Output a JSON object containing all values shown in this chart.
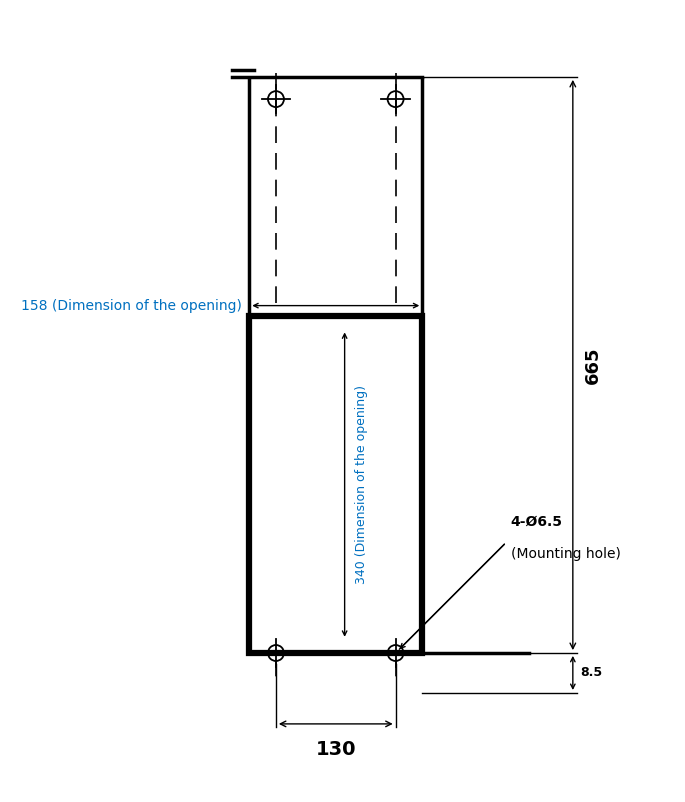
{
  "bg_color": "#ffffff",
  "line_color": "#000000",
  "text_color_blue": "#0070c0",
  "text_color_black": "#000000",
  "dim_158": "158 (Dimension of the opening)",
  "dim_340": "340 (Dimension of the opening)",
  "dim_665": "665",
  "dim_130": "130",
  "dim_8_5": "8.5",
  "dim_hole": "4-Ø6.5",
  "dim_hole2": "(Mounting hole)",
  "fig_width": 6.85,
  "fig_height": 8.02,
  "dpi": 100
}
